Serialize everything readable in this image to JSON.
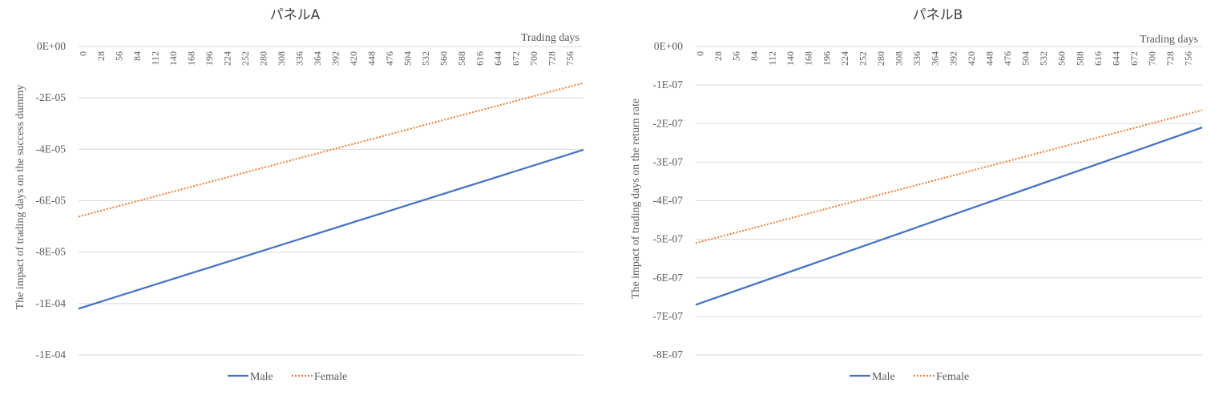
{
  "chart_data": [
    {
      "type": "line",
      "title": "パネルA",
      "xlabel": "Trading days",
      "ylabel": "The impact of trading days on the success dummy",
      "x_tick_labels": [
        "0",
        "28",
        "56",
        "84",
        "112",
        "140",
        "168",
        "196",
        "224",
        "252",
        "280",
        "308",
        "336",
        "364",
        "392",
        "420",
        "448",
        "476",
        "504",
        "532",
        "560",
        "588",
        "616",
        "644",
        "672",
        "700",
        "728",
        "756"
      ],
      "y_ticks": [
        0,
        -2e-05,
        -4e-05,
        -6e-05,
        -8e-05,
        -0.0001,
        -0.00012
      ],
      "y_tick_labels": [
        "0E+00",
        "-2E-05",
        "-4E-05",
        "-6E-05",
        "-8E-05",
        "-1E-04",
        "-1E-04"
      ],
      "ylim": [
        -0.00012,
        0
      ],
      "xlim": [
        0,
        784
      ],
      "grid": true,
      "legend_position": "bottom",
      "series": [
        {
          "name": "Male",
          "style": "solid",
          "color": "#4472C4",
          "x": [
            0,
            784
          ],
          "values": [
            -0.000102,
            -4.02e-05
          ]
        },
        {
          "name": "Female",
          "style": "dotted",
          "color": "#ED7D31",
          "x": [
            0,
            784
          ],
          "values": [
            -6.62e-05,
            -1.42e-05
          ]
        }
      ]
    },
    {
      "type": "line",
      "title": "パネルB",
      "xlabel": "Trading days",
      "ylabel": "The impact of trading days on the return rate",
      "x_tick_labels": [
        "0",
        "28",
        "56",
        "84",
        "112",
        "140",
        "168",
        "196",
        "224",
        "252",
        "280",
        "308",
        "336",
        "364",
        "392",
        "420",
        "448",
        "476",
        "504",
        "532",
        "560",
        "588",
        "616",
        "644",
        "672",
        "700",
        "728",
        "756"
      ],
      "y_ticks": [
        0,
        -1e-07,
        -2e-07,
        -3e-07,
        -4e-07,
        -5e-07,
        -6e-07,
        -7e-07,
        -8e-07
      ],
      "y_tick_labels": [
        "0E+00",
        "-1E-07",
        "-2E-07",
        "-3E-07",
        "-4E-07",
        "-5E-07",
        "-6E-07",
        "-7E-07",
        "-8E-07"
      ],
      "ylim": [
        -8e-07,
        0
      ],
      "xlim": [
        0,
        784
      ],
      "grid": true,
      "legend_position": "bottom",
      "series": [
        {
          "name": "Male",
          "style": "solid",
          "color": "#4472C4",
          "x": [
            0,
            784
          ],
          "values": [
            -6.7e-07,
            -2.1e-07
          ]
        },
        {
          "name": "Female",
          "style": "dotted",
          "color": "#ED7D31",
          "x": [
            0,
            784
          ],
          "values": [
            -5.1e-07,
            -1.65e-07
          ]
        }
      ]
    }
  ]
}
